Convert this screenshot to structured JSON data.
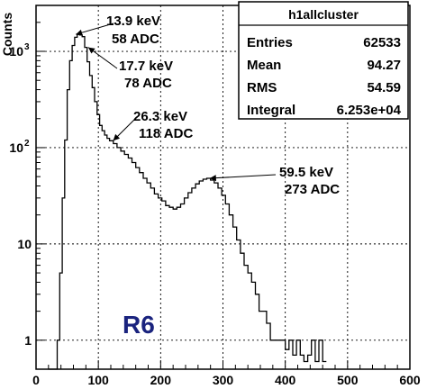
{
  "chart_data": {
    "type": "line",
    "title": "",
    "xlabel": "",
    "ylabel": "Counts",
    "xlim": [
      0,
      600
    ],
    "ylim": [
      0.5,
      3000
    ],
    "y_scale": "log",
    "grid": true,
    "x_ticks": [
      "0",
      "100",
      "200",
      "300",
      "400",
      "500",
      "600"
    ],
    "y_ticks": [
      {
        "base": "1",
        "exp": ""
      },
      {
        "base": "10",
        "exp": ""
      },
      {
        "base": "10",
        "exp": "2"
      },
      {
        "base": "10",
        "exp": "3"
      }
    ],
    "series": [
      {
        "name": "",
        "x": [
          20,
          30,
          34,
          38,
          42,
          46,
          50,
          54,
          58,
          62,
          66,
          70,
          74,
          78,
          82,
          86,
          90,
          94,
          98,
          102,
          106,
          110,
          114,
          118,
          124,
          130,
          136,
          142,
          148,
          154,
          160,
          166,
          172,
          178,
          184,
          190,
          196,
          202,
          208,
          214,
          220,
          226,
          232,
          238,
          244,
          250,
          256,
          262,
          268,
          274,
          280,
          286,
          292,
          298,
          304,
          310,
          316,
          322,
          328,
          334,
          340,
          346,
          352,
          358,
          364,
          370,
          376,
          382,
          388,
          394,
          400,
          406,
          412,
          418,
          424,
          430,
          436,
          442,
          448,
          454,
          460
        ],
        "y": [
          0,
          0,
          1,
          5,
          30,
          120,
          400,
          800,
          1150,
          1400,
          1500,
          1480,
          1420,
          1100,
          780,
          560,
          420,
          300,
          220,
          170,
          150,
          135,
          125,
          118,
          110,
          100,
          92,
          85,
          78,
          70,
          62,
          55,
          48,
          43,
          38,
          33,
          30,
          28,
          25,
          24,
          23,
          24,
          26,
          30,
          34,
          38,
          42,
          45,
          47,
          48,
          46,
          43,
          38,
          32,
          26,
          20,
          15,
          11,
          8,
          6,
          5,
          4,
          3,
          2,
          2,
          1.5,
          1,
          1,
          1,
          1,
          0.8,
          1,
          0.7,
          1,
          0.7,
          0.6,
          0.7,
          1,
          0.6,
          1,
          0.6
        ]
      }
    ],
    "annotations": [
      {
        "line1": "13.9 keV",
        "line2": "58 ADC",
        "x": 58,
        "y": 1500
      },
      {
        "line1": "17.7 keV",
        "line2": "78 ADC",
        "x": 78,
        "y": 1100
      },
      {
        "line1": "26.3 keV",
        "line2": "118 ADC",
        "x": 118,
        "y": 118
      },
      {
        "line1": "59.5 keV",
        "line2": "273 ADC",
        "x": 273,
        "y": 48
      }
    ],
    "stats_box": {
      "title": "h1allcluster",
      "rows": [
        {
          "label": "Entries",
          "value": "62533"
        },
        {
          "label": "Mean",
          "value": "94.27"
        },
        {
          "label": "RMS",
          "value": "54.59"
        },
        {
          "label": "Integral",
          "value": "6.253e+04"
        }
      ]
    },
    "overlay_label": "R6",
    "colors": {
      "line": "#000000",
      "grid": "#000000",
      "overlay": "#1a237e",
      "frame": "#000000"
    }
  }
}
